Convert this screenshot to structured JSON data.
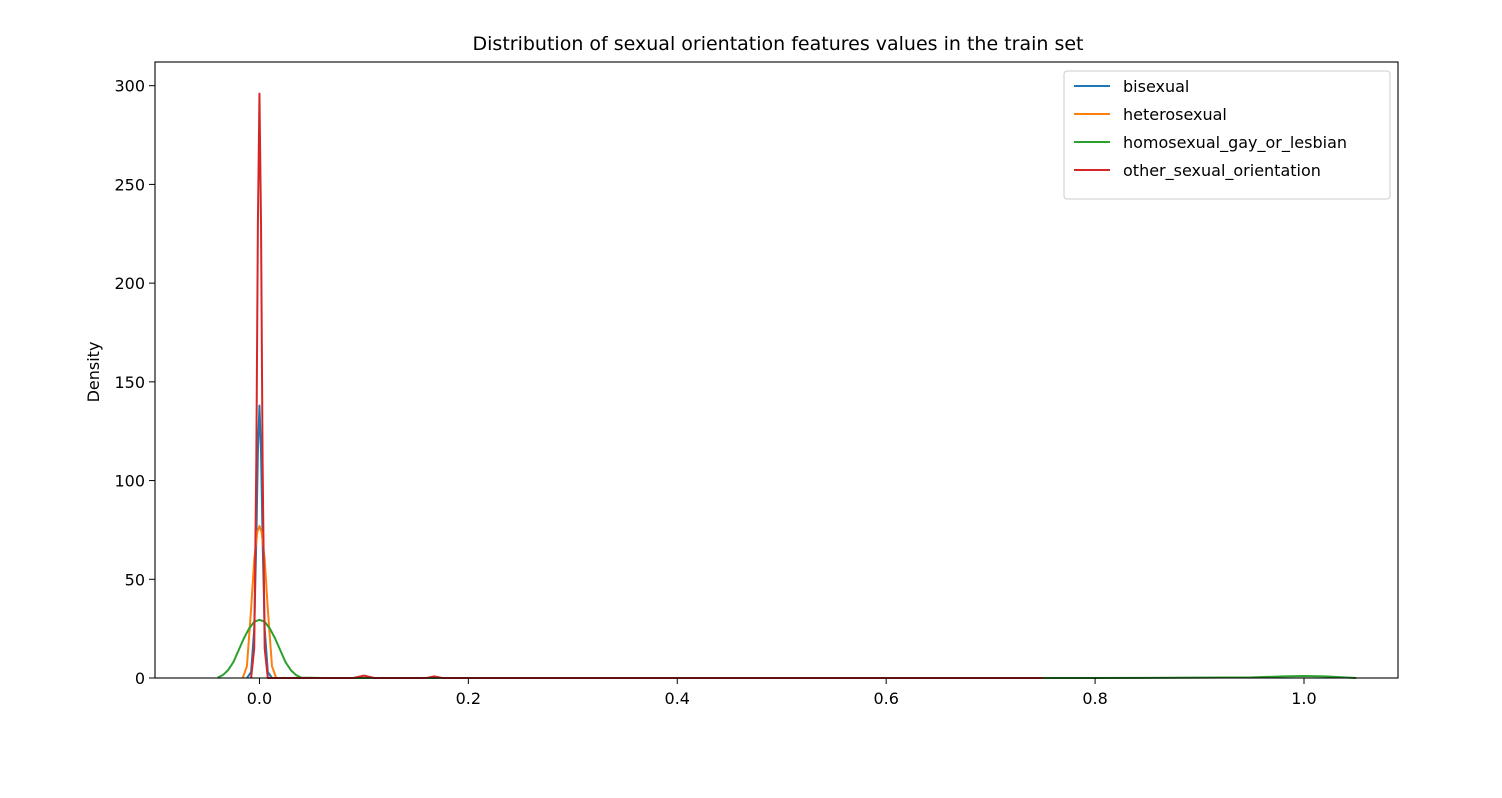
{
  "chart_data": {
    "type": "line",
    "title": "Distribution of sexual orientation features values in the train set",
    "xlabel": "",
    "ylabel": "Density",
    "xlim": [
      -0.1,
      1.09
    ],
    "ylim": [
      0,
      312
    ],
    "x_ticks": [
      0.0,
      0.2,
      0.4,
      0.6,
      0.8,
      1.0
    ],
    "x_tick_labels": [
      "0.0",
      "0.2",
      "0.4",
      "0.6",
      "0.8",
      "1.0"
    ],
    "y_ticks": [
      0,
      50,
      100,
      150,
      200,
      250,
      300
    ],
    "y_tick_labels": [
      "0",
      "50",
      "100",
      "150",
      "200",
      "250",
      "300"
    ],
    "grid": false,
    "legend_position": "top-right",
    "series": [
      {
        "name": "bisexual",
        "color": "#1f77b4",
        "x": [
          -0.012,
          -0.008,
          -0.005,
          -0.003,
          -0.0015,
          0.0,
          0.0015,
          0.003,
          0.005,
          0.008,
          0.012
        ],
        "y": [
          0,
          3,
          25,
          70,
          115,
          138,
          115,
          70,
          25,
          3,
          0
        ]
      },
      {
        "name": "heterosexual",
        "color": "#ff7f0e",
        "x": [
          -0.016,
          -0.012,
          -0.008,
          -0.005,
          -0.002,
          0.0,
          0.002,
          0.005,
          0.008,
          0.012,
          0.016,
          0.03
        ],
        "y": [
          0,
          6,
          35,
          60,
          74,
          77,
          74,
          60,
          35,
          6,
          0,
          0
        ]
      },
      {
        "name": "homosexual_gay_or_lesbian",
        "color": "#2ca02c",
        "x": [
          -0.04,
          -0.035,
          -0.03,
          -0.025,
          -0.02,
          -0.015,
          -0.01,
          -0.005,
          0.0,
          0.005,
          0.01,
          0.015,
          0.02,
          0.025,
          0.03,
          0.035,
          0.04,
          0.06,
          0.8,
          0.95,
          0.98,
          1.0,
          1.02,
          1.05
        ],
        "y": [
          0.2,
          1.5,
          4,
          8,
          14,
          20,
          25,
          28.5,
          29.5,
          28.5,
          25,
          20,
          14,
          8,
          4,
          1.5,
          0.2,
          0,
          0,
          0.3,
          0.8,
          1.0,
          0.8,
          0
        ]
      },
      {
        "name": "other_sexual_orientation",
        "color": "#d62728",
        "x": [
          -0.008,
          -0.005,
          -0.003,
          -0.0015,
          0.0,
          0.0015,
          0.003,
          0.005,
          0.008,
          0.09,
          0.1,
          0.11,
          0.16,
          0.167,
          0.175,
          0.75
        ],
        "y": [
          0,
          15,
          110,
          230,
          296,
          230,
          110,
          15,
          0,
          0,
          1.2,
          0,
          0,
          0.8,
          0,
          0
        ]
      }
    ]
  }
}
